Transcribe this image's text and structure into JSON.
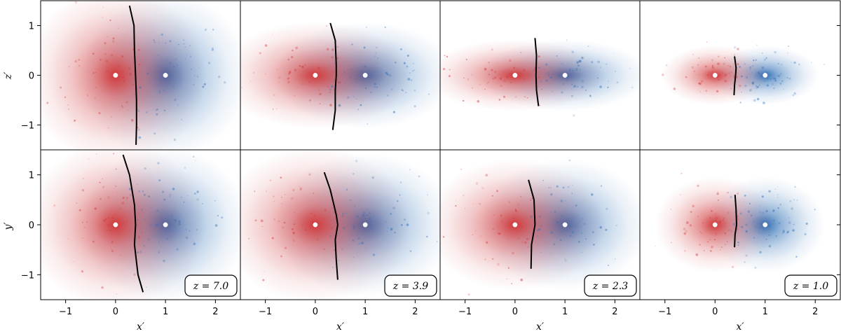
{
  "figure": {
    "x_axis_label": "x′",
    "y_axis_label_top": "z′",
    "y_axis_label_bottom": "y′"
  },
  "chart_data": {
    "type": "scatter",
    "rows": [
      "z′",
      "y′"
    ],
    "xlim": [
      -1.5,
      2.5
    ],
    "ylim": [
      -1.5,
      1.5
    ],
    "xticks": [
      -1,
      0,
      1,
      2
    ],
    "yticks": [
      -1,
      0,
      1
    ],
    "tick_labels_x": [
      "−1",
      "0",
      "1",
      "2"
    ],
    "tick_labels_y": [
      "−1",
      "0",
      "1"
    ],
    "colors": {
      "red_halo": "#d0383a",
      "blue_halo": "#2f6fb5",
      "boundary": "#000000",
      "marker": "#ffffff"
    },
    "panels": [
      {
        "redshift_label": "z = 7.0",
        "red_sigma": {
          "top": [
            0.75,
            0.75
          ],
          "bottom": [
            0.75,
            0.7
          ]
        },
        "blue_sigma": {
          "top": [
            0.7,
            0.7
          ],
          "bottom": [
            0.7,
            0.65
          ]
        },
        "points": [
          {
            "x": 0,
            "y": 0
          },
          {
            "x": 1,
            "y": 0
          }
        ],
        "boundary_top": [
          [
            0.28,
            1.4
          ],
          [
            0.37,
            1.0
          ],
          [
            0.38,
            0.5
          ],
          [
            0.4,
            0.0
          ],
          [
            0.42,
            -0.5
          ],
          [
            0.42,
            -1.0
          ],
          [
            0.41,
            -1.4
          ]
        ],
        "boundary_bottom": [
          [
            0.15,
            1.4
          ],
          [
            0.28,
            1.0
          ],
          [
            0.38,
            0.4
          ],
          [
            0.4,
            0.0
          ],
          [
            0.38,
            -0.4
          ],
          [
            0.45,
            -1.0
          ],
          [
            0.55,
            -1.35
          ]
        ]
      },
      {
        "redshift_label": "z = 3.9",
        "red_sigma": {
          "top": [
            0.8,
            0.45
          ],
          "bottom": [
            0.8,
            0.65
          ]
        },
        "blue_sigma": {
          "top": [
            0.75,
            0.45
          ],
          "bottom": [
            0.75,
            0.6
          ]
        },
        "points": [
          {
            "x": 0,
            "y": 0
          },
          {
            "x": 1,
            "y": 0
          }
        ],
        "boundary_top": [
          [
            0.3,
            1.05
          ],
          [
            0.4,
            0.7
          ],
          [
            0.42,
            0.2
          ],
          [
            0.42,
            0.0
          ],
          [
            0.4,
            -0.3
          ],
          [
            0.4,
            -0.7
          ],
          [
            0.35,
            -1.1
          ]
        ],
        "boundary_bottom": [
          [
            0.18,
            1.05
          ],
          [
            0.3,
            0.7
          ],
          [
            0.42,
            0.2
          ],
          [
            0.45,
            0.0
          ],
          [
            0.4,
            -0.3
          ],
          [
            0.42,
            -0.7
          ],
          [
            0.45,
            -1.1
          ]
        ]
      },
      {
        "redshift_label": "z = 2.3",
        "red_sigma": {
          "top": [
            0.75,
            0.3
          ],
          "bottom": [
            0.75,
            0.55
          ]
        },
        "blue_sigma": {
          "top": [
            0.7,
            0.3
          ],
          "bottom": [
            0.7,
            0.55
          ]
        },
        "points": [
          {
            "x": 0,
            "y": 0
          },
          {
            "x": 1,
            "y": 0
          }
        ],
        "boundary_top": [
          [
            0.4,
            0.75
          ],
          [
            0.43,
            0.4
          ],
          [
            0.42,
            0.0
          ],
          [
            0.43,
            -0.3
          ],
          [
            0.47,
            -0.62
          ]
        ],
        "boundary_bottom": [
          [
            0.27,
            0.9
          ],
          [
            0.38,
            0.5
          ],
          [
            0.4,
            0.0
          ],
          [
            0.33,
            -0.4
          ],
          [
            0.32,
            -0.88
          ]
        ]
      },
      {
        "redshift_label": "z = 1.0",
        "red_sigma": {
          "top": [
            0.45,
            0.25
          ],
          "bottom": [
            0.5,
            0.4
          ]
        },
        "blue_sigma": {
          "top": [
            0.45,
            0.25
          ],
          "bottom": [
            0.5,
            0.4
          ]
        },
        "points": [
          {
            "x": 0,
            "y": 0
          },
          {
            "x": 1,
            "y": 0
          }
        ],
        "boundary_top": [
          [
            0.39,
            0.38
          ],
          [
            0.42,
            0.15
          ],
          [
            0.41,
            0.0
          ],
          [
            0.39,
            -0.2
          ],
          [
            0.38,
            -0.4
          ]
        ],
        "boundary_bottom": [
          [
            0.4,
            0.6
          ],
          [
            0.42,
            0.3
          ],
          [
            0.43,
            0.0
          ],
          [
            0.4,
            -0.2
          ],
          [
            0.39,
            -0.45
          ]
        ]
      }
    ]
  }
}
